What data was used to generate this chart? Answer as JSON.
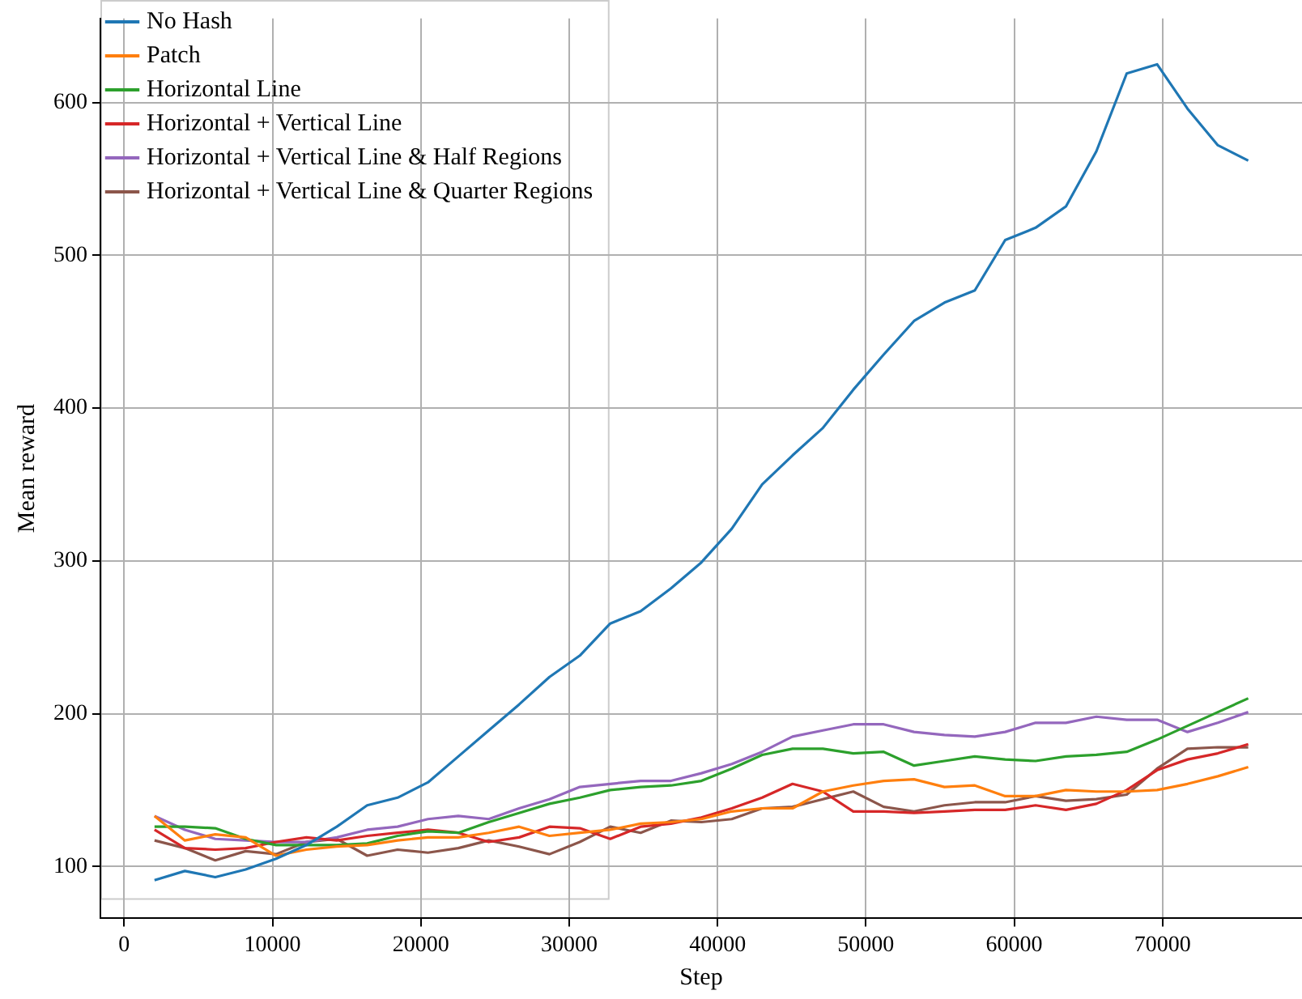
{
  "chart_data": {
    "type": "line",
    "xlabel": "Step",
    "ylabel": "Mean reward",
    "x": [
      2048,
      4096,
      6144,
      8192,
      10240,
      12288,
      14336,
      16384,
      18432,
      20480,
      22528,
      24576,
      26624,
      28672,
      30720,
      32768,
      34816,
      36864,
      38912,
      40960,
      43008,
      45056,
      47104,
      49152,
      51200,
      53248,
      55296,
      57344,
      59392,
      61440,
      63488,
      65536,
      67584,
      69632,
      71680,
      73728,
      75776
    ],
    "series": [
      {
        "name": "No Hash",
        "color": "#1f77b4",
        "values": [
          91,
          97,
          93,
          98,
          105,
          114,
          126,
          140,
          145,
          155,
          172,
          189,
          206,
          224,
          238,
          259,
          267,
          282,
          299,
          321,
          350,
          369,
          387,
          412,
          435,
          457,
          469,
          477,
          510,
          518,
          532,
          568,
          619,
          625,
          596,
          572,
          562
        ]
      },
      {
        "name": "Patch",
        "color": "#ff7f0e",
        "values": [
          133,
          117,
          121,
          119,
          107,
          111,
          113,
          114,
          117,
          119,
          119,
          122,
          126,
          120,
          122,
          124,
          128,
          129,
          131,
          136,
          138,
          138,
          149,
          153,
          156,
          157,
          152,
          153,
          146,
          146,
          150,
          149,
          149,
          150,
          154,
          159,
          165
        ]
      },
      {
        "name": "Horizontal Line",
        "color": "#2ca02c",
        "values": [
          126,
          126,
          125,
          118,
          114,
          114,
          114,
          115,
          120,
          123,
          122,
          129,
          135,
          141,
          145,
          150,
          152,
          153,
          156,
          164,
          173,
          177,
          177,
          174,
          175,
          166,
          169,
          172,
          170,
          169,
          172,
          173,
          175,
          183,
          192,
          201,
          210
        ]
      },
      {
        "name": "Horizontal + Vertical Line",
        "color": "#d62728",
        "values": [
          124,
          112,
          111,
          112,
          116,
          119,
          117,
          120,
          122,
          124,
          122,
          116,
          119,
          126,
          125,
          118,
          126,
          128,
          132,
          138,
          145,
          154,
          149,
          136,
          136,
          135,
          136,
          137,
          137,
          140,
          137,
          141,
          150,
          163,
          170,
          174,
          180
        ]
      },
      {
        "name": "Horizontal + Vertical Line & Half Regions",
        "color": "#9467bd",
        "values": [
          133,
          124,
          118,
          117,
          116,
          116,
          119,
          124,
          126,
          131,
          133,
          131,
          138,
          144,
          152,
          154,
          156,
          156,
          161,
          167,
          175,
          185,
          189,
          193,
          193,
          188,
          186,
          185,
          188,
          194,
          194,
          198,
          196,
          196,
          188,
          194,
          201
        ]
      },
      {
        "name": "Horizontal + Vertical Line & Quarter Regions",
        "color": "#8c564b",
        "values": [
          117,
          112,
          104,
          110,
          108,
          116,
          118,
          107,
          111,
          109,
          112,
          117,
          113,
          108,
          116,
          126,
          122,
          130,
          129,
          131,
          138,
          139,
          144,
          149,
          139,
          136,
          140,
          142,
          142,
          146,
          143,
          144,
          147,
          164,
          177,
          178,
          178
        ]
      }
    ],
    "xlim": [
      -1600,
      79400
    ],
    "xticks": [
      0,
      10000,
      20000,
      30000,
      40000,
      50000,
      60000,
      70000
    ],
    "ylim": [
      66,
      655
    ],
    "yticks": [
      100,
      200,
      300,
      400,
      500,
      600
    ],
    "grid": true,
    "legend": "top left",
    "marker": "none",
    "line_style": "solid"
  }
}
